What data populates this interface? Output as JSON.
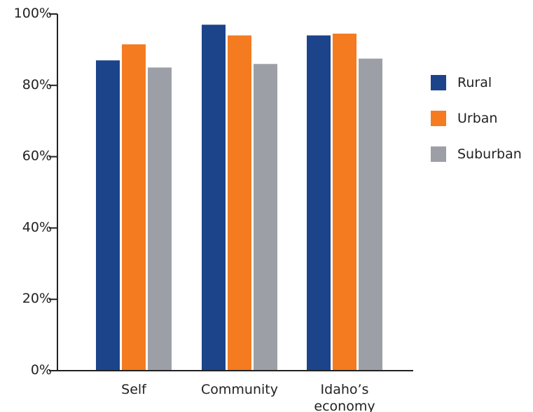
{
  "chart_data": {
    "type": "bar",
    "categories": [
      "Self",
      "Community",
      "Idaho’s economy"
    ],
    "category_lines": [
      [
        "Self"
      ],
      [
        "Community"
      ],
      [
        "Idaho’s",
        "economy"
      ]
    ],
    "series": [
      {
        "name": "Rural",
        "color": "#1b448b",
        "values": [
          87,
          97,
          94
        ]
      },
      {
        "name": "Urban",
        "color": "#f47b20",
        "values": [
          91.5,
          94,
          94.5
        ]
      },
      {
        "name": "Suburban",
        "color": "#9ca0a6",
        "values": [
          85,
          86,
          87.5
        ]
      }
    ],
    "yticks": [
      "0%",
      "20%",
      "40%",
      "60%",
      "80%",
      "100%"
    ],
    "ytick_values": [
      0,
      20,
      40,
      60,
      80,
      100
    ],
    "ylim": [
      0,
      100
    ],
    "legend_position": "right",
    "grid": false,
    "axis_color": "#222222"
  }
}
